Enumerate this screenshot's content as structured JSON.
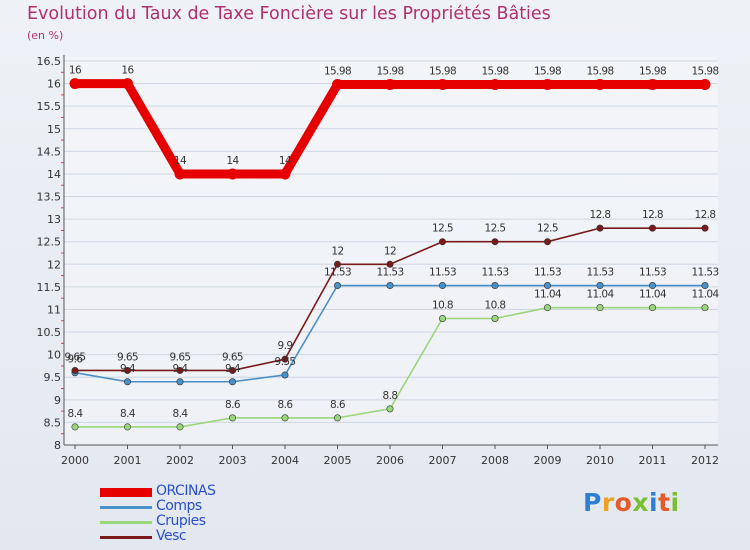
{
  "title": "Evolution du Taux de Taxe Foncière sur les Propriétés Bâties",
  "unit_label": "(en %)",
  "logo": {
    "text": "Proxiti",
    "colors": [
      "#2e7fd6",
      "#f0a020",
      "#e45a2a",
      "#7bbf30",
      "#2e7fd6",
      "#e45a2a",
      "#7bbf30"
    ]
  },
  "chart_data": {
    "type": "line",
    "title": "Evolution du Taux de Taxe Foncière sur les Propriétés Bâties",
    "ylabel": "(en %)",
    "xlabel": "",
    "ylim": [
      8,
      16.5
    ],
    "yticks": [
      "8",
      "8.5",
      "9",
      "9.5",
      "10",
      "10.5",
      "11",
      "11.5",
      "12",
      "12.5",
      "13",
      "13.5",
      "14",
      "14.5",
      "15",
      "15.5",
      "16",
      "16.5"
    ],
    "categories": [
      "2000",
      "2001",
      "2002",
      "2003",
      "2004",
      "2005",
      "2006",
      "2007",
      "2008",
      "2009",
      "2010",
      "2011",
      "2012"
    ],
    "series": [
      {
        "name": "ORCINAS",
        "color": "#e60000",
        "values": [
          16,
          16,
          14,
          14,
          14,
          15.98,
          15.98,
          15.98,
          15.98,
          15.98,
          15.98,
          15.98,
          15.98
        ],
        "labels": [
          "16",
          "16",
          "14",
          "14",
          "14",
          "15.98",
          "15.98",
          "15.98",
          "15.98",
          "15.98",
          "15.98",
          "15.98",
          "15.98"
        ]
      },
      {
        "name": "Comps",
        "color": "#4a90c8",
        "values": [
          9.6,
          9.4,
          9.4,
          9.4,
          9.55,
          11.53,
          11.53,
          11.53,
          11.53,
          11.53,
          11.53,
          11.53,
          11.53
        ],
        "labels": [
          "9.6",
          "9.4",
          "9.4",
          "9.4",
          "9.55",
          "11.53",
          "11.53",
          "11.53",
          "11.53",
          "11.53",
          "11.53",
          "11.53",
          "11.53"
        ]
      },
      {
        "name": "Crupies",
        "color": "#9ad67a",
        "values": [
          8.4,
          8.4,
          8.4,
          8.6,
          8.6,
          8.6,
          8.8,
          10.8,
          10.8,
          11.04,
          11.04,
          11.04,
          11.04
        ],
        "labels": [
          "8.4",
          "8.4",
          "8.4",
          "8.6",
          "8.6",
          "8.6",
          "8.8",
          "10.8",
          "10.8",
          "11.04",
          "11.04",
          "11.04",
          "11.04"
        ]
      },
      {
        "name": "Vesc",
        "color": "#7a1a1a",
        "values": [
          9.65,
          9.65,
          9.65,
          9.65,
          9.9,
          12,
          12,
          12.5,
          12.5,
          12.5,
          12.8,
          12.8,
          12.8
        ],
        "labels": [
          "9.65",
          "9.65",
          "9.65",
          "9.65",
          "9.9",
          "12",
          "12",
          "12.5",
          "12.5",
          "12.5",
          "12.8",
          "12.8",
          "12.8"
        ]
      }
    ],
    "legend": [
      "ORCINAS",
      "Comps",
      "Crupies",
      "Vesc"
    ],
    "legend_position": "bottom-left"
  }
}
